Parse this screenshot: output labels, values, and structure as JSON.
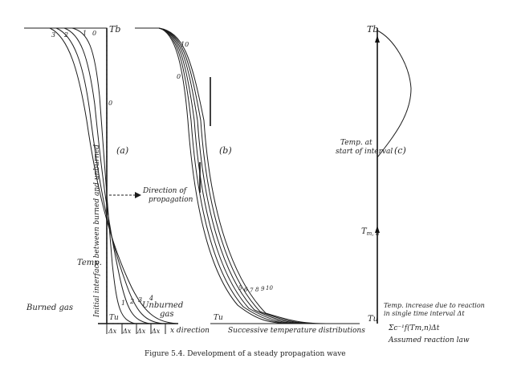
{
  "panel_a": {
    "tag": "(a)",
    "t_b": "Tb",
    "t_u": "Tu",
    "curve_labels": [
      "0",
      "1",
      "2",
      "3",
      "4"
    ],
    "top_labels": [
      "3",
      "2",
      "1",
      "0"
    ],
    "vertical_text": "Initial interface between burned and unburned",
    "temp": "Temp.",
    "direction": "Direction of propagation",
    "burned": "Burned gas",
    "unburned": "Unburned gas",
    "dx": "Δx",
    "x_direction": "x direction"
  },
  "panel_b": {
    "tag": "(b)",
    "t_u": "Tu",
    "curve_labels_top": [
      "10",
      "0"
    ],
    "curve_labels_bottom": [
      "5",
      "6",
      "7",
      "8",
      "9",
      "10"
    ],
    "xlabel": "Successive temperature distributions"
  },
  "panel_c": {
    "tag": "(c)",
    "t_b": "Tb",
    "t_u": "Tu",
    "t_mn": "Tm,n",
    "temp_start": "Temp. at start of interval",
    "increase": "Temp. increase due to reaction in single time interval Δt",
    "formula": "Σc⁻¹f(Tm,n)Δt",
    "reaction_law": "Assumed reaction law"
  },
  "caption": "Figure 5.4. Development of a steady propagation wave"
}
